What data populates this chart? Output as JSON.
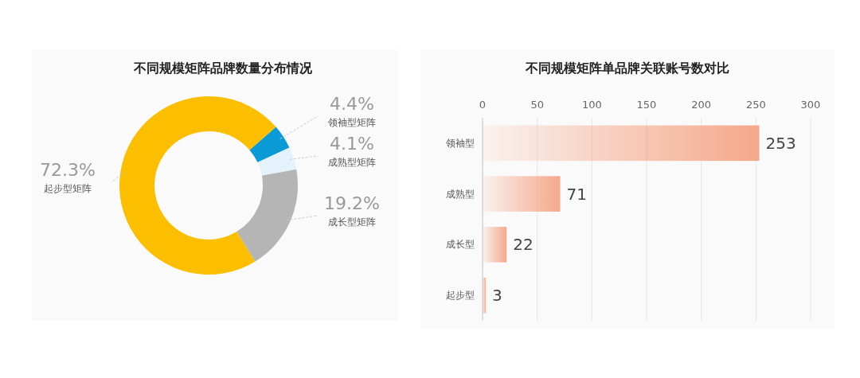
{
  "chart_data": [
    {
      "type": "donut",
      "title": "不同规模矩阵品牌数量分布情况",
      "categories": [
        "领袖型矩阵",
        "成熟型矩阵",
        "成长型矩阵",
        "起步型矩阵"
      ],
      "values": [
        4.4,
        4.1,
        19.2,
        72.3
      ],
      "colors": [
        "#0a9ad6",
        "#e3f2fb",
        "#b5b5b5",
        "#fbbf00"
      ],
      "value_labels": [
        "4.4%",
        "4.1%",
        "19.2%",
        "72.3%"
      ]
    },
    {
      "type": "bar",
      "title": "不同规模矩阵单品牌关联账号数对比",
      "orientation": "horizontal",
      "categories": [
        "领袖型",
        "成熟型",
        "成长型",
        "起步型"
      ],
      "values": [
        253,
        71,
        22,
        3
      ],
      "color": "#f5a88a",
      "xlim": [
        0,
        300
      ],
      "xticks": [
        0,
        50,
        100,
        150,
        200,
        250,
        300
      ],
      "grid": "x",
      "data_labels": true
    }
  ]
}
